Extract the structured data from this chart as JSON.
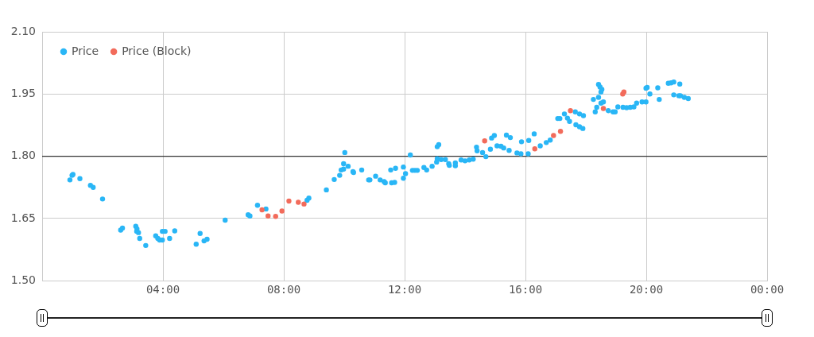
{
  "chart_data": {
    "type": "scatter",
    "xlim": [
      0,
      24
    ],
    "xticks": [
      {
        "value": 4,
        "label": "04:00"
      },
      {
        "value": 8,
        "label": "08:00"
      },
      {
        "value": 12,
        "label": "12:00"
      },
      {
        "value": 16,
        "label": "16:00"
      },
      {
        "value": 20,
        "label": "20:00"
      },
      {
        "value": 24,
        "label": "00:00"
      }
    ],
    "ylim": [
      1.5,
      2.1
    ],
    "yticks": [
      {
        "value": 1.5,
        "label": "1.50"
      },
      {
        "value": 1.65,
        "label": "1.65"
      },
      {
        "value": 1.8,
        "label": "1.80"
      },
      {
        "value": 1.95,
        "label": "1.95"
      },
      {
        "value": 2.1,
        "label": "2.10"
      }
    ],
    "grid": true,
    "legend": "top left",
    "marker": "circle",
    "ref_lines": [
      {
        "axis": "y",
        "value": 1.8,
        "color": "#333333"
      }
    ],
    "series": [
      {
        "name": "Price",
        "color": "#29b6f6",
        "x": [
          0.92,
          0.99,
          1.02,
          1.25,
          1.6,
          1.69,
          2.0,
          2.6,
          2.66,
          3.1,
          3.14,
          3.13,
          3.19,
          3.23,
          3.43,
          3.76,
          3.83,
          3.89,
          3.98,
          3.98,
          4.07,
          4.22,
          4.39,
          5.1,
          5.23,
          5.36,
          5.46,
          6.06,
          6.82,
          6.88,
          7.13,
          7.41,
          8.77,
          8.83,
          9.41,
          9.67,
          9.85,
          9.9,
          9.98,
          10.02,
          9.98,
          10.13,
          10.29,
          10.31,
          10.58,
          10.81,
          10.85,
          11.04,
          11.19,
          11.32,
          11.36,
          11.57,
          11.67,
          11.54,
          11.7,
          11.96,
          11.96,
          12.03,
          12.19,
          12.26,
          12.34,
          12.42,
          12.64,
          12.73,
          12.91,
          13.06,
          13.08,
          13.08,
          13.13,
          13.21,
          13.35,
          13.46,
          13.48,
          13.68,
          13.68,
          13.87,
          14.0,
          14.14,
          14.27,
          14.38,
          14.4,
          14.58,
          14.69,
          14.84,
          14.88,
          14.97,
          15.06,
          15.19,
          15.28,
          15.37,
          15.46,
          15.5,
          15.72,
          15.85,
          15.87,
          16.09,
          16.11,
          16.29,
          16.49,
          16.69,
          16.82,
          17.07,
          17.14,
          17.29,
          17.39,
          17.46,
          17.67,
          17.79,
          17.9,
          17.65,
          17.79,
          17.92,
          18.25,
          18.31,
          18.36,
          18.42,
          18.47,
          18.5,
          18.53,
          18.42,
          18.5,
          18.58,
          18.74,
          18.9,
          18.97,
          19.06,
          19.23,
          19.35,
          19.47,
          19.59,
          19.68,
          19.86,
          19.99,
          19.99,
          20.03,
          20.12,
          20.38,
          20.43,
          20.73,
          20.82,
          20.91,
          20.91,
          21.08,
          21.13,
          21.11,
          21.26,
          21.39
        ],
        "values": [
          1.743,
          1.754,
          1.756,
          1.746,
          1.73,
          1.725,
          1.697,
          1.622,
          1.627,
          1.631,
          1.625,
          1.619,
          1.616,
          1.602,
          1.585,
          1.608,
          1.602,
          1.598,
          1.598,
          1.619,
          1.619,
          1.602,
          1.62,
          1.588,
          1.614,
          1.596,
          1.6,
          1.646,
          1.659,
          1.656,
          1.682,
          1.673,
          1.694,
          1.699,
          1.719,
          1.744,
          1.754,
          1.767,
          1.782,
          1.809,
          1.769,
          1.776,
          1.763,
          1.761,
          1.767,
          1.743,
          1.743,
          1.752,
          1.743,
          1.739,
          1.736,
          1.736,
          1.737,
          1.767,
          1.771,
          1.774,
          1.747,
          1.758,
          1.803,
          1.766,
          1.766,
          1.766,
          1.773,
          1.767,
          1.776,
          1.786,
          1.794,
          1.823,
          1.828,
          1.792,
          1.792,
          1.782,
          1.778,
          1.784,
          1.777,
          1.791,
          1.789,
          1.791,
          1.793,
          1.822,
          1.813,
          1.809,
          1.799,
          1.817,
          1.844,
          1.85,
          1.825,
          1.824,
          1.82,
          1.851,
          1.814,
          1.845,
          1.808,
          1.806,
          1.835,
          1.806,
          1.838,
          1.854,
          1.825,
          1.833,
          1.839,
          1.891,
          1.891,
          1.902,
          1.892,
          1.884,
          1.876,
          1.871,
          1.867,
          1.907,
          1.902,
          1.898,
          1.937,
          1.907,
          1.918,
          1.973,
          1.967,
          1.955,
          1.961,
          1.942,
          1.928,
          1.931,
          1.91,
          1.907,
          1.907,
          1.919,
          1.918,
          1.917,
          1.918,
          1.919,
          1.928,
          1.931,
          1.931,
          1.964,
          1.966,
          1.95,
          1.965,
          1.937,
          1.976,
          1.977,
          1.979,
          1.948,
          1.946,
          1.946,
          1.974,
          1.942,
          1.939
        ]
      },
      {
        "name": "Price (Block)",
        "color": "#f26b5b",
        "x": [
          7.28,
          7.48,
          7.73,
          7.94,
          8.17,
          8.48,
          8.67,
          14.65,
          16.31,
          16.93,
          17.16,
          17.49,
          18.58,
          19.22,
          19.26
        ],
        "values": [
          1.671,
          1.656,
          1.655,
          1.668,
          1.692,
          1.689,
          1.685,
          1.837,
          1.818,
          1.85,
          1.86,
          1.91,
          1.915,
          1.95,
          1.955
        ]
      }
    ]
  }
}
